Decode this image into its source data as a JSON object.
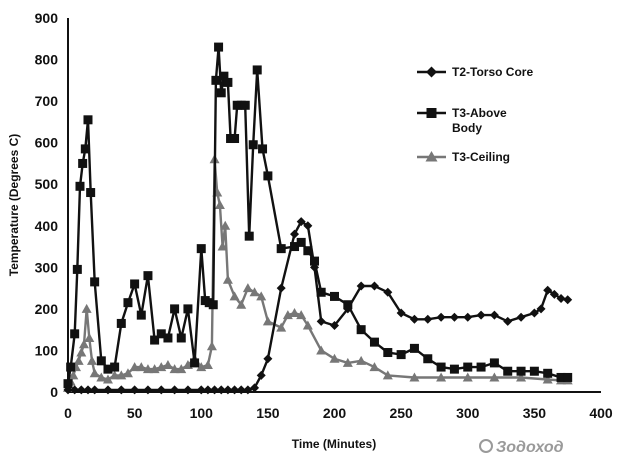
{
  "chart_data": {
    "type": "line",
    "title": "",
    "xlabel": "Time (Minutes)",
    "ylabel": "Temperature (Degrees C)",
    "xlim": [
      0,
      400
    ],
    "ylim": [
      0,
      900
    ],
    "x_ticks": [
      "0",
      "50",
      "100",
      "150",
      "200",
      "250",
      "300",
      "350",
      "400"
    ],
    "y_ticks": [
      "0",
      "100",
      "200",
      "300",
      "400",
      "500",
      "600",
      "700",
      "800",
      "900"
    ],
    "grid": false,
    "legend_position": "right",
    "series": [
      {
        "name": "T2-Torso Core",
        "marker": "diamond",
        "color": "#111111",
        "x": [
          0,
          5,
          10,
          15,
          20,
          30,
          40,
          50,
          60,
          70,
          80,
          90,
          100,
          105,
          110,
          115,
          120,
          125,
          130,
          135,
          140,
          145,
          150,
          160,
          170,
          175,
          180,
          185,
          190,
          200,
          210,
          220,
          230,
          240,
          250,
          260,
          270,
          280,
          290,
          300,
          310,
          320,
          330,
          340,
          350,
          355,
          360,
          365,
          370,
          375
        ],
        "y": [
          5,
          5,
          5,
          5,
          5,
          5,
          5,
          5,
          5,
          5,
          5,
          5,
          5,
          5,
          5,
          5,
          5,
          5,
          5,
          5,
          10,
          40,
          80,
          250,
          380,
          410,
          400,
          300,
          170,
          160,
          200,
          255,
          255,
          240,
          190,
          175,
          175,
          180,
          180,
          180,
          185,
          185,
          170,
          180,
          190,
          200,
          245,
          235,
          225,
          222
        ]
      },
      {
        "name": "T3-Above Body",
        "marker": "square",
        "color": "#111111",
        "x": [
          0,
          2,
          5,
          7,
          9,
          11,
          13,
          15,
          17,
          20,
          25,
          30,
          35,
          40,
          45,
          50,
          55,
          60,
          65,
          70,
          75,
          80,
          85,
          90,
          95,
          100,
          103,
          106,
          109,
          111,
          113,
          115,
          117,
          120,
          122,
          125,
          127,
          130,
          133,
          136,
          139,
          142,
          146,
          150,
          160,
          170,
          175,
          180,
          185,
          190,
          200,
          210,
          220,
          230,
          240,
          250,
          260,
          270,
          280,
          290,
          300,
          310,
          320,
          330,
          340,
          350,
          360,
          370,
          375
        ],
        "y": [
          20,
          60,
          140,
          295,
          495,
          550,
          585,
          655,
          480,
          265,
          75,
          55,
          60,
          165,
          215,
          260,
          185,
          280,
          125,
          140,
          130,
          200,
          130,
          200,
          70,
          345,
          220,
          215,
          210,
          750,
          830,
          720,
          760,
          745,
          610,
          610,
          690,
          690,
          690,
          375,
          595,
          775,
          585,
          520,
          345,
          350,
          360,
          340,
          315,
          240,
          230,
          210,
          150,
          120,
          95,
          90,
          105,
          80,
          60,
          55,
          60,
          60,
          70,
          50,
          50,
          50,
          45,
          35,
          35
        ]
      },
      {
        "name": "T3-Ceiling",
        "marker": "triangle",
        "color": "#777777",
        "x": [
          0,
          2,
          4,
          6,
          8,
          10,
          12,
          14,
          16,
          18,
          20,
          25,
          30,
          35,
          40,
          45,
          50,
          55,
          60,
          65,
          70,
          75,
          80,
          85,
          90,
          95,
          100,
          105,
          108,
          110,
          112,
          114,
          116,
          118,
          120,
          125,
          130,
          135,
          140,
          145,
          150,
          160,
          165,
          170,
          175,
          180,
          190,
          200,
          210,
          220,
          230,
          240,
          260,
          280,
          300,
          320,
          340,
          360,
          370,
          375
        ],
        "y": [
          10,
          25,
          40,
          60,
          75,
          95,
          115,
          200,
          130,
          75,
          45,
          35,
          30,
          40,
          40,
          45,
          60,
          60,
          55,
          55,
          60,
          65,
          55,
          55,
          65,
          80,
          60,
          65,
          110,
          560,
          480,
          450,
          350,
          400,
          270,
          230,
          210,
          250,
          240,
          230,
          170,
          155,
          185,
          190,
          185,
          160,
          100,
          80,
          70,
          75,
          60,
          40,
          35,
          35,
          35,
          35,
          35,
          30,
          28,
          28
        ]
      }
    ]
  },
  "watermark": "Зодоход"
}
